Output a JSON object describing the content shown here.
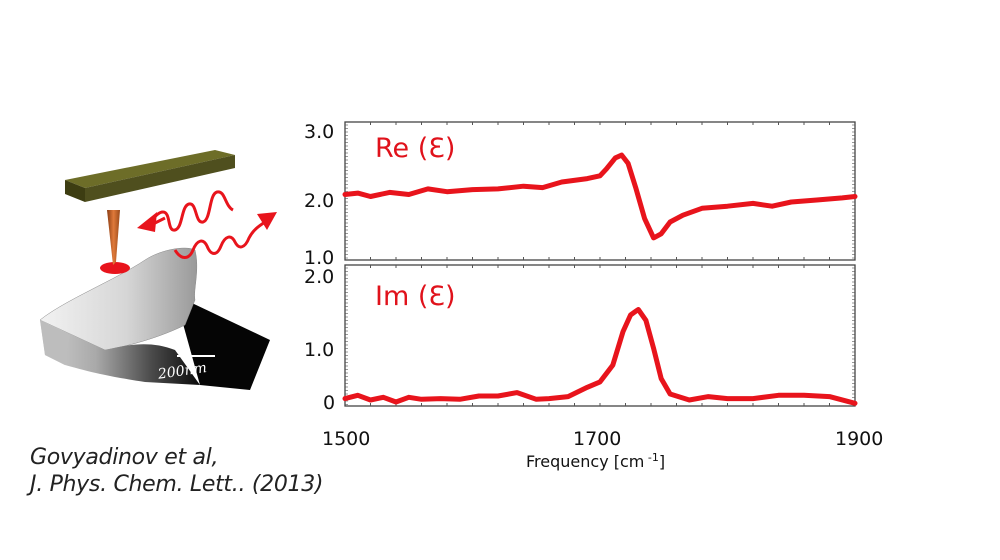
{
  "illustration": {
    "scale_bar_label": "200nm",
    "description": "AFM cantilever tip over sample with bidirectional IR wave arrows"
  },
  "citation": {
    "line1": "Govyadinov et al,",
    "line2": "J. Phys. Chem. Lett.. (2013)"
  },
  "colors": {
    "curve": "#e8141c",
    "title": "#e0121b",
    "cantilever": "#4f4f1e",
    "tip": "#c8642a",
    "spot": "#e8141c"
  },
  "chart_data": [
    {
      "type": "line",
      "title": "Re (Ɛ)",
      "xlabel": "Frequency [cm -1]",
      "ylabel": "",
      "xlim": [
        1500,
        1900
      ],
      "ylim": [
        1.0,
        3.0
      ],
      "yticks": [
        "3.0",
        "2.0",
        "1.0"
      ],
      "xticks": [
        "1500",
        "1700",
        "1900"
      ],
      "grid": false,
      "x": [
        1500,
        1510,
        1520,
        1535,
        1550,
        1565,
        1580,
        1600,
        1620,
        1640,
        1655,
        1670,
        1690,
        1700,
        1705,
        1712,
        1717,
        1722,
        1728,
        1735,
        1742,
        1748,
        1755,
        1765,
        1780,
        1800,
        1820,
        1835,
        1850,
        1870,
        1890,
        1900
      ],
      "series": [
        {
          "name": "Re (Ɛ)",
          "values": [
            1.95,
            1.97,
            1.92,
            1.98,
            1.95,
            2.03,
            1.99,
            2.02,
            2.03,
            2.07,
            2.05,
            2.13,
            2.18,
            2.22,
            2.32,
            2.48,
            2.52,
            2.4,
            2.05,
            1.6,
            1.32,
            1.38,
            1.55,
            1.65,
            1.75,
            1.78,
            1.82,
            1.78,
            1.84,
            1.87,
            1.9,
            1.92
          ]
        }
      ]
    },
    {
      "type": "line",
      "title": "Im (Ɛ)",
      "xlabel": "Frequency [cm -1]",
      "ylabel": "",
      "xlim": [
        1500,
        1900
      ],
      "ylim": [
        0,
        2.0
      ],
      "yticks": [
        "2.0",
        "1.0",
        "0"
      ],
      "xticks": [
        "1500",
        "1700",
        "1900"
      ],
      "grid": false,
      "x": [
        1500,
        1510,
        1520,
        1530,
        1540,
        1550,
        1560,
        1575,
        1590,
        1605,
        1620,
        1635,
        1650,
        1660,
        1675,
        1690,
        1700,
        1710,
        1718,
        1724,
        1730,
        1736,
        1742,
        1748,
        1755,
        1770,
        1785,
        1800,
        1820,
        1840,
        1860,
        1880,
        1900
      ],
      "series": [
        {
          "name": "Im (Ɛ)",
          "values": [
            0.05,
            0.1,
            0.03,
            0.07,
            0.0,
            0.07,
            0.04,
            0.05,
            0.04,
            0.09,
            0.09,
            0.14,
            0.04,
            0.05,
            0.08,
            0.22,
            0.3,
            0.55,
            1.05,
            1.3,
            1.38,
            1.22,
            0.8,
            0.35,
            0.12,
            0.03,
            0.08,
            0.05,
            0.05,
            0.1,
            0.1,
            0.08,
            -0.02
          ]
        }
      ]
    }
  ]
}
